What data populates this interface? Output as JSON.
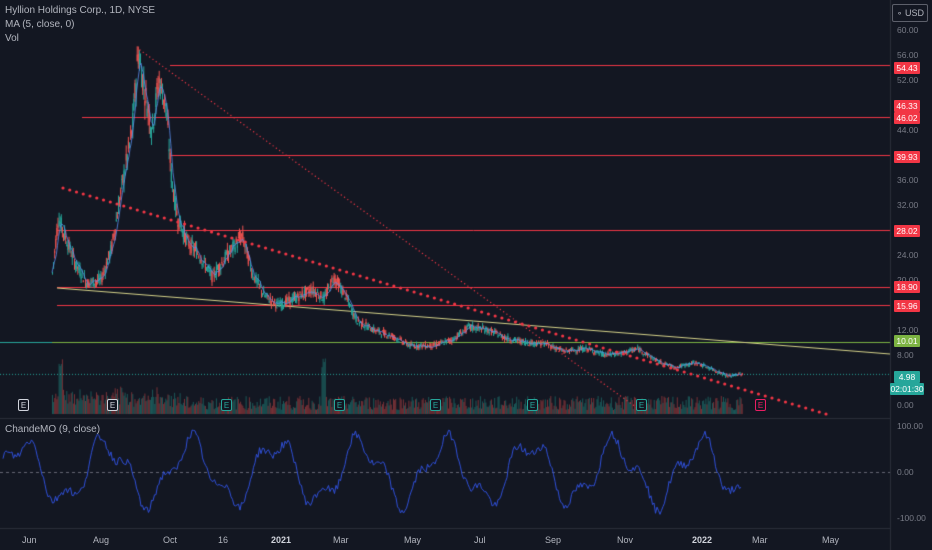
{
  "header": {
    "symbol_line": "Hyllion Holdings Corp., 1D, NYSE",
    "ma_line": "MA (5, close, 0)",
    "vol_line": "Vol",
    "currency": "USD"
  },
  "oscillator": {
    "title": "ChandeMO (9, close)"
  },
  "colors": {
    "background": "#131722",
    "up": "#26a69a",
    "down": "#ef5350",
    "trendline": "#f23645",
    "yellow_line": "#d7d48a",
    "green_line": "#7cb342",
    "oscillator": "#2f4fd8"
  },
  "price_axis": {
    "ticks": [
      "60.00",
      "56.00",
      "52.00",
      "48.00",
      "44.00",
      "40.00",
      "36.00",
      "32.00",
      "28.00",
      "24.00",
      "20.00",
      "16.00",
      "12.00",
      "8.00",
      "4.00",
      "0.00"
    ],
    "labels": [
      {
        "text": "54.43",
        "color": "#f23645"
      },
      {
        "text": "46.33",
        "color": "#f23645"
      },
      {
        "text": "46.02",
        "color": "#f23645"
      },
      {
        "text": "39.93",
        "color": "#f23645"
      },
      {
        "text": "28.02",
        "color": "#f23645"
      },
      {
        "text": "18.90",
        "color": "#f23645"
      },
      {
        "text": "15.96",
        "color": "#f23645"
      },
      {
        "text": "10.01",
        "color": "#7cb342"
      },
      {
        "text": "4.98",
        "color": "#26a69a"
      },
      {
        "text": "02:01:30",
        "color": "#26a69a"
      }
    ]
  },
  "osc_axis": {
    "ticks": [
      "100.00",
      "0.00",
      "-100.00"
    ]
  },
  "time_axis": {
    "ticks": [
      {
        "text": "Jun",
        "bold": false
      },
      {
        "text": "Aug",
        "bold": false
      },
      {
        "text": "Oct",
        "bold": false
      },
      {
        "text": "16",
        "bold": false
      },
      {
        "text": "2021",
        "bold": true
      },
      {
        "text": "Mar",
        "bold": false
      },
      {
        "text": "May",
        "bold": false
      },
      {
        "text": "Jul",
        "bold": false
      },
      {
        "text": "Sep",
        "bold": false
      },
      {
        "text": "Nov",
        "bold": false
      },
      {
        "text": "2022",
        "bold": true
      },
      {
        "text": "Mar",
        "bold": false
      },
      {
        "text": "May",
        "bold": false
      }
    ]
  },
  "earnings_badges": [
    "E",
    "E",
    "E",
    "E",
    "E",
    "E",
    "E",
    "E"
  ],
  "chart_data": {
    "type": "candlestick",
    "title": "Hyllion Holdings Corp., 1D, NYSE",
    "price_series": {
      "name": "HYLN close (approx.)",
      "points": [
        [
          "2020-05-15",
          10.0
        ],
        [
          "2020-06-10",
          10.1
        ],
        [
          "2020-06-18",
          17.5
        ],
        [
          "2020-06-25",
          30.0
        ],
        [
          "2020-07-01",
          27.0
        ],
        [
          "2020-07-10",
          22.5
        ],
        [
          "2020-07-20",
          19.5
        ],
        [
          "2020-08-01",
          20.0
        ],
        [
          "2020-08-10",
          25.0
        ],
        [
          "2020-08-20",
          36.0
        ],
        [
          "2020-08-28",
          44.0
        ],
        [
          "2020-09-02",
          56.5
        ],
        [
          "2020-09-08",
          50.0
        ],
        [
          "2020-09-14",
          44.0
        ],
        [
          "2020-09-20",
          52.0
        ],
        [
          "2020-09-26",
          48.0
        ],
        [
          "2020-10-01",
          36.0
        ],
        [
          "2020-10-06",
          30.0
        ],
        [
          "2020-10-15",
          26.0
        ],
        [
          "2020-10-25",
          24.0
        ],
        [
          "2020-11-05",
          20.5
        ],
        [
          "2020-11-18",
          24.0
        ],
        [
          "2020-12-01",
          27.0
        ],
        [
          "2020-12-10",
          21.0
        ],
        [
          "2020-12-20",
          17.5
        ],
        [
          "2021-01-01",
          16.0
        ],
        [
          "2021-01-15",
          17.0
        ],
        [
          "2021-01-30",
          18.5
        ],
        [
          "2021-02-10",
          17.0
        ],
        [
          "2021-02-18",
          20.5
        ],
        [
          "2021-02-28",
          17.5
        ],
        [
          "2021-03-10",
          13.5
        ],
        [
          "2021-03-25",
          12.0
        ],
        [
          "2021-04-10",
          11.0
        ],
        [
          "2021-04-25",
          9.5
        ],
        [
          "2021-05-15",
          9.5
        ],
        [
          "2021-06-01",
          10.5
        ],
        [
          "2021-06-15",
          12.5
        ],
        [
          "2021-07-01",
          12.0
        ],
        [
          "2021-07-20",
          10.5
        ],
        [
          "2021-08-05",
          10.0
        ],
        [
          "2021-08-20",
          9.8
        ],
        [
          "2021-09-05",
          8.6
        ],
        [
          "2021-09-25",
          9.0
        ],
        [
          "2021-10-10",
          8.0
        ],
        [
          "2021-10-25",
          8.3
        ],
        [
          "2021-11-08",
          9.0
        ],
        [
          "2021-11-25",
          7.0
        ],
        [
          "2021-12-10",
          6.0
        ],
        [
          "2021-12-28",
          6.8
        ],
        [
          "2022-01-10",
          5.8
        ],
        [
          "2022-01-25",
          4.6
        ],
        [
          "2022-02-05",
          4.98
        ]
      ]
    },
    "oscillator": {
      "name": "ChandeMO (9, close)",
      "range": [
        -100,
        100
      ]
    },
    "horizontal_levels": [
      54.43,
      46.02,
      39.93,
      28.02,
      18.9,
      15.96,
      10.01
    ],
    "ylim": [
      0,
      62
    ]
  }
}
